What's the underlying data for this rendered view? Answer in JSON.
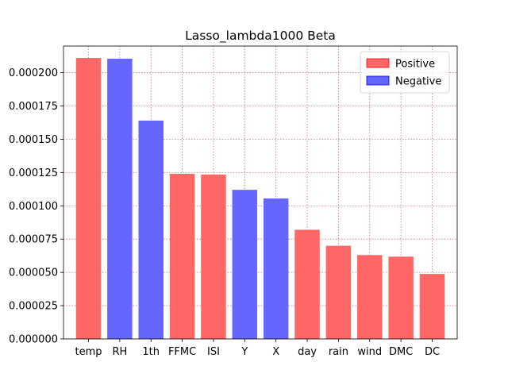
{
  "chart_data": {
    "type": "bar",
    "title": "Lasso_lambda1000 Beta",
    "xlabel": "",
    "ylabel": "",
    "categories": [
      "temp",
      "RH",
      "1th",
      "FFMC",
      "ISI",
      "Y",
      "X",
      "day",
      "rain",
      "wind",
      "DMC",
      "DC"
    ],
    "values": [
      0.000211,
      0.0002105,
      0.000164,
      0.000124,
      0.0001235,
      0.000112,
      0.0001055,
      8.2e-05,
      7e-05,
      6.3e-05,
      6.18e-05,
      4.88e-05
    ],
    "sign": [
      "positive",
      "negative",
      "negative",
      "positive",
      "positive",
      "negative",
      "negative",
      "positive",
      "positive",
      "positive",
      "positive",
      "positive"
    ],
    "ylim": [
      0,
      0.00022
    ],
    "yticks": [
      0,
      2.5e-05,
      5e-05,
      7.5e-05,
      0.0001,
      0.000125,
      0.00015,
      0.000175,
      0.0002
    ],
    "ytick_labels": [
      "0.000000",
      "0.000025",
      "0.000050",
      "0.000075",
      "0.000100",
      "0.000125",
      "0.000150",
      "0.000175",
      "0.000200"
    ],
    "grid": true,
    "legend": {
      "placement": "top-right",
      "entries": [
        {
          "key": "positive",
          "label": "Positive",
          "color": "#ff6666",
          "edge": "#ff0000"
        },
        {
          "key": "negative",
          "label": "Negative",
          "color": "#6666ff",
          "edge": "#0000ff"
        }
      ]
    },
    "colors": {
      "positive": "#ff6666",
      "negative": "#6666ff",
      "grid": "#e07070"
    }
  }
}
